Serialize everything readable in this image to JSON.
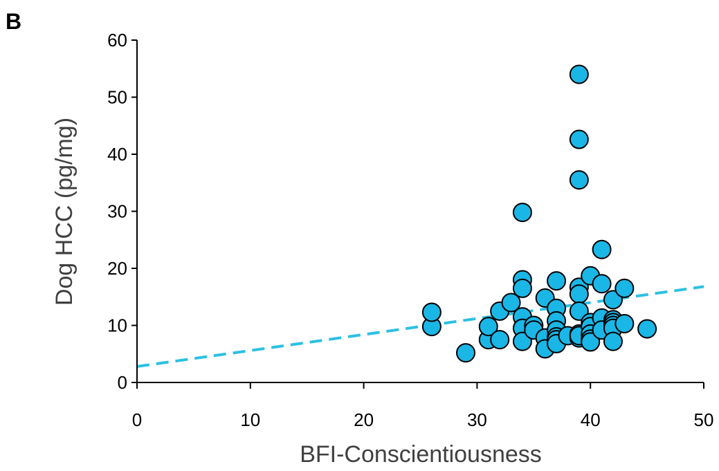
{
  "panel_label": "B",
  "colors": {
    "point_fill": "#1ab6e6",
    "point_stroke": "#000000",
    "trendline": "#2cc0e2",
    "axis": "#000000"
  },
  "chart_data": {
    "type": "scatter",
    "title": "",
    "xlabel": "BFI-Conscientiousness",
    "ylabel": "Dog HCC (pg/mg)",
    "xlim": [
      0,
      50
    ],
    "ylim": [
      0,
      60
    ],
    "xticks": [
      0,
      10,
      20,
      30,
      40,
      50
    ],
    "yticks": [
      0,
      10,
      20,
      30,
      40,
      50,
      60
    ],
    "grid": false,
    "legend": "none",
    "trendline": {
      "style": "dashed",
      "x": [
        0,
        50
      ],
      "y": [
        2.8,
        16.8
      ]
    },
    "x": [
      26,
      26,
      29,
      31,
      31,
      32,
      32,
      33,
      34,
      34,
      34,
      34,
      34,
      34,
      35,
      35,
      36,
      36,
      36,
      37,
      37,
      37,
      37,
      37,
      37,
      37,
      38,
      39,
      39,
      39,
      39,
      39,
      39,
      39,
      39,
      39,
      40,
      40,
      40,
      40,
      40,
      40,
      41,
      41,
      41,
      41,
      42,
      42,
      42,
      42,
      42,
      42,
      43,
      43,
      45
    ],
    "y": [
      9.8,
      12.3,
      5.2,
      7.5,
      9.8,
      7.5,
      12.5,
      14.0,
      29.8,
      18.0,
      16.5,
      11.5,
      9.5,
      7.2,
      10.0,
      9.2,
      14.8,
      7.8,
      5.9,
      17.8,
      13.0,
      10.8,
      9.2,
      8.0,
      7.5,
      6.8,
      8.2,
      54.0,
      42.6,
      35.5,
      16.7,
      15.5,
      12.5,
      8.5,
      7.8,
      8.2,
      18.7,
      10.5,
      9.8,
      8.5,
      7.6,
      7.1,
      23.3,
      17.3,
      11.3,
      9.2,
      14.5,
      11.0,
      10.5,
      10.0,
      9.5,
      7.2,
      16.5,
      10.3,
      9.4
    ]
  }
}
